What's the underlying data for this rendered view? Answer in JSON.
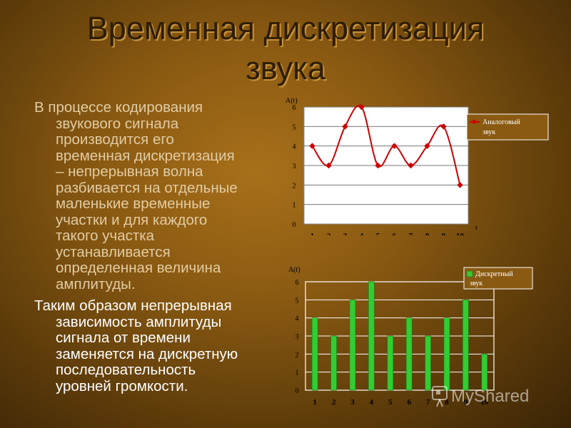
{
  "slide": {
    "title_line1": "Временная дискретизация",
    "title_line2": "звука",
    "paragraph1": [
      "В процессе кодирования",
      "звукового сигнала",
      "производится его",
      "временная дискретизация",
      "– непрерывная волна",
      "разбивается на отдельные",
      "маленькие временные",
      "участки и для каждого",
      "такого участка",
      "устанавливается",
      "определенная величина",
      "амплитуды."
    ],
    "paragraph2": [
      "Таким образом непрерывная",
      "зависимость амплитуды",
      "сигнала от времени",
      "заменяется на дискретную",
      "последовательность",
      "уровней громкости."
    ],
    "watermark": "MyShared"
  },
  "colors": {
    "line_series": "#cc0000",
    "bar_series": "#33cc33",
    "plot_bg": "#ffffff"
  },
  "chart_data": [
    {
      "type": "line",
      "x": [
        1,
        2,
        3,
        4,
        5,
        6,
        7,
        8,
        9,
        10
      ],
      "series": [
        {
          "name": "Аналоговый звук",
          "values": [
            4,
            3,
            5,
            6,
            3,
            4,
            3,
            4,
            5,
            2
          ]
        }
      ],
      "ylabel": "A(t)",
      "xlabel": "t",
      "ylim": [
        0,
        6
      ],
      "yticks": [
        0,
        1,
        2,
        3,
        4,
        5,
        6
      ],
      "grid": true,
      "legend": "right"
    },
    {
      "type": "bar",
      "categories": [
        "1",
        "2",
        "3",
        "4",
        "5",
        "6",
        "7",
        "8",
        "9",
        "10"
      ],
      "series": [
        {
          "name": "Дискретный звук",
          "values": [
            4,
            3,
            5,
            6,
            3,
            4,
            3,
            4,
            5,
            2
          ]
        }
      ],
      "ylabel": "A(t)",
      "ylim": [
        0,
        6
      ],
      "yticks": [
        0,
        1,
        2,
        3,
        4,
        5,
        6
      ],
      "grid": true,
      "legend": "top-right"
    }
  ]
}
